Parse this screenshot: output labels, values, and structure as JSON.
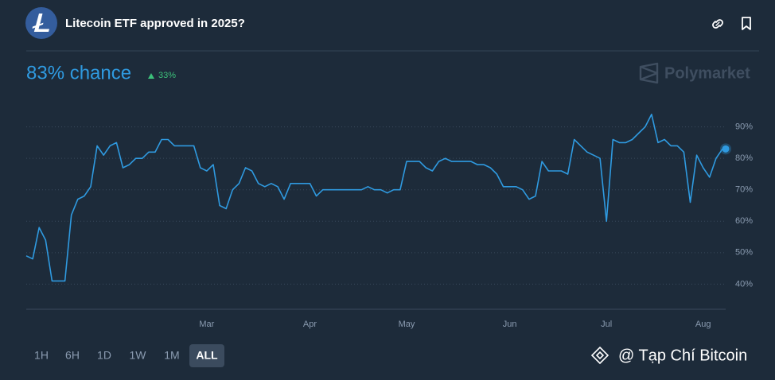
{
  "header": {
    "title": "Litecoin ETF approved in 2025?"
  },
  "summary": {
    "chance": "83% chance",
    "change": "33%"
  },
  "brand": "Polymarket",
  "ranges": [
    "1H",
    "6H",
    "1D",
    "1W",
    "1M",
    "ALL"
  ],
  "active_range": "ALL",
  "watermark": "@ Tạp Chí Bitcoin",
  "chart_data": {
    "type": "line",
    "color": "#2f9ae0",
    "grid": true,
    "ylim": [
      32,
      98
    ],
    "yticks": [
      {
        "value": 40,
        "label": "40%"
      },
      {
        "value": 50,
        "label": "50%"
      },
      {
        "value": 60,
        "label": "60%"
      },
      {
        "value": 70,
        "label": "70%"
      },
      {
        "value": 80,
        "label": "80%"
      },
      {
        "value": 90,
        "label": "90%"
      }
    ],
    "categories": [
      null,
      null,
      null,
      null,
      null,
      null,
      null,
      null,
      null,
      null,
      null,
      null,
      null,
      null,
      null,
      null,
      null,
      null,
      null,
      null,
      null,
      null,
      null,
      null,
      null,
      null,
      null,
      null,
      "Mar",
      null,
      null,
      null,
      null,
      null,
      null,
      null,
      null,
      null,
      null,
      null,
      null,
      null,
      null,
      null,
      "Apr",
      null,
      null,
      null,
      null,
      null,
      null,
      null,
      null,
      null,
      null,
      null,
      null,
      null,
      null,
      "May",
      null,
      null,
      null,
      null,
      null,
      null,
      null,
      null,
      null,
      null,
      null,
      null,
      null,
      null,
      null,
      "Jun",
      null,
      null,
      null,
      null,
      null,
      null,
      null,
      null,
      null,
      null,
      null,
      null,
      null,
      null,
      "Jul",
      null,
      null,
      null,
      null,
      null,
      null,
      null,
      null,
      null,
      null,
      null,
      null,
      null,
      null,
      "Aug",
      null,
      null,
      null
    ],
    "values": [
      49,
      48,
      58,
      54,
      41,
      41,
      41,
      62,
      67,
      68,
      71,
      84,
      81,
      84,
      85,
      77,
      78,
      80,
      80,
      82,
      82,
      86,
      86,
      84,
      84,
      84,
      84,
      77,
      76,
      78,
      65,
      64,
      70,
      72,
      77,
      76,
      72,
      71,
      72,
      71,
      67,
      72,
      72,
      72,
      72,
      68,
      70,
      70,
      70,
      70,
      70,
      70,
      70,
      71,
      70,
      70,
      69,
      70,
      70,
      79,
      79,
      79,
      77,
      76,
      79,
      80,
      79,
      79,
      79,
      79,
      78,
      78,
      77,
      75,
      71,
      71,
      71,
      70,
      67,
      68,
      79,
      76,
      76,
      76,
      75,
      86,
      84,
      82,
      81,
      80,
      60,
      86,
      85,
      85,
      86,
      88,
      90,
      94,
      85,
      86,
      84,
      84,
      82,
      66,
      81,
      77,
      74,
      80,
      83
    ]
  }
}
